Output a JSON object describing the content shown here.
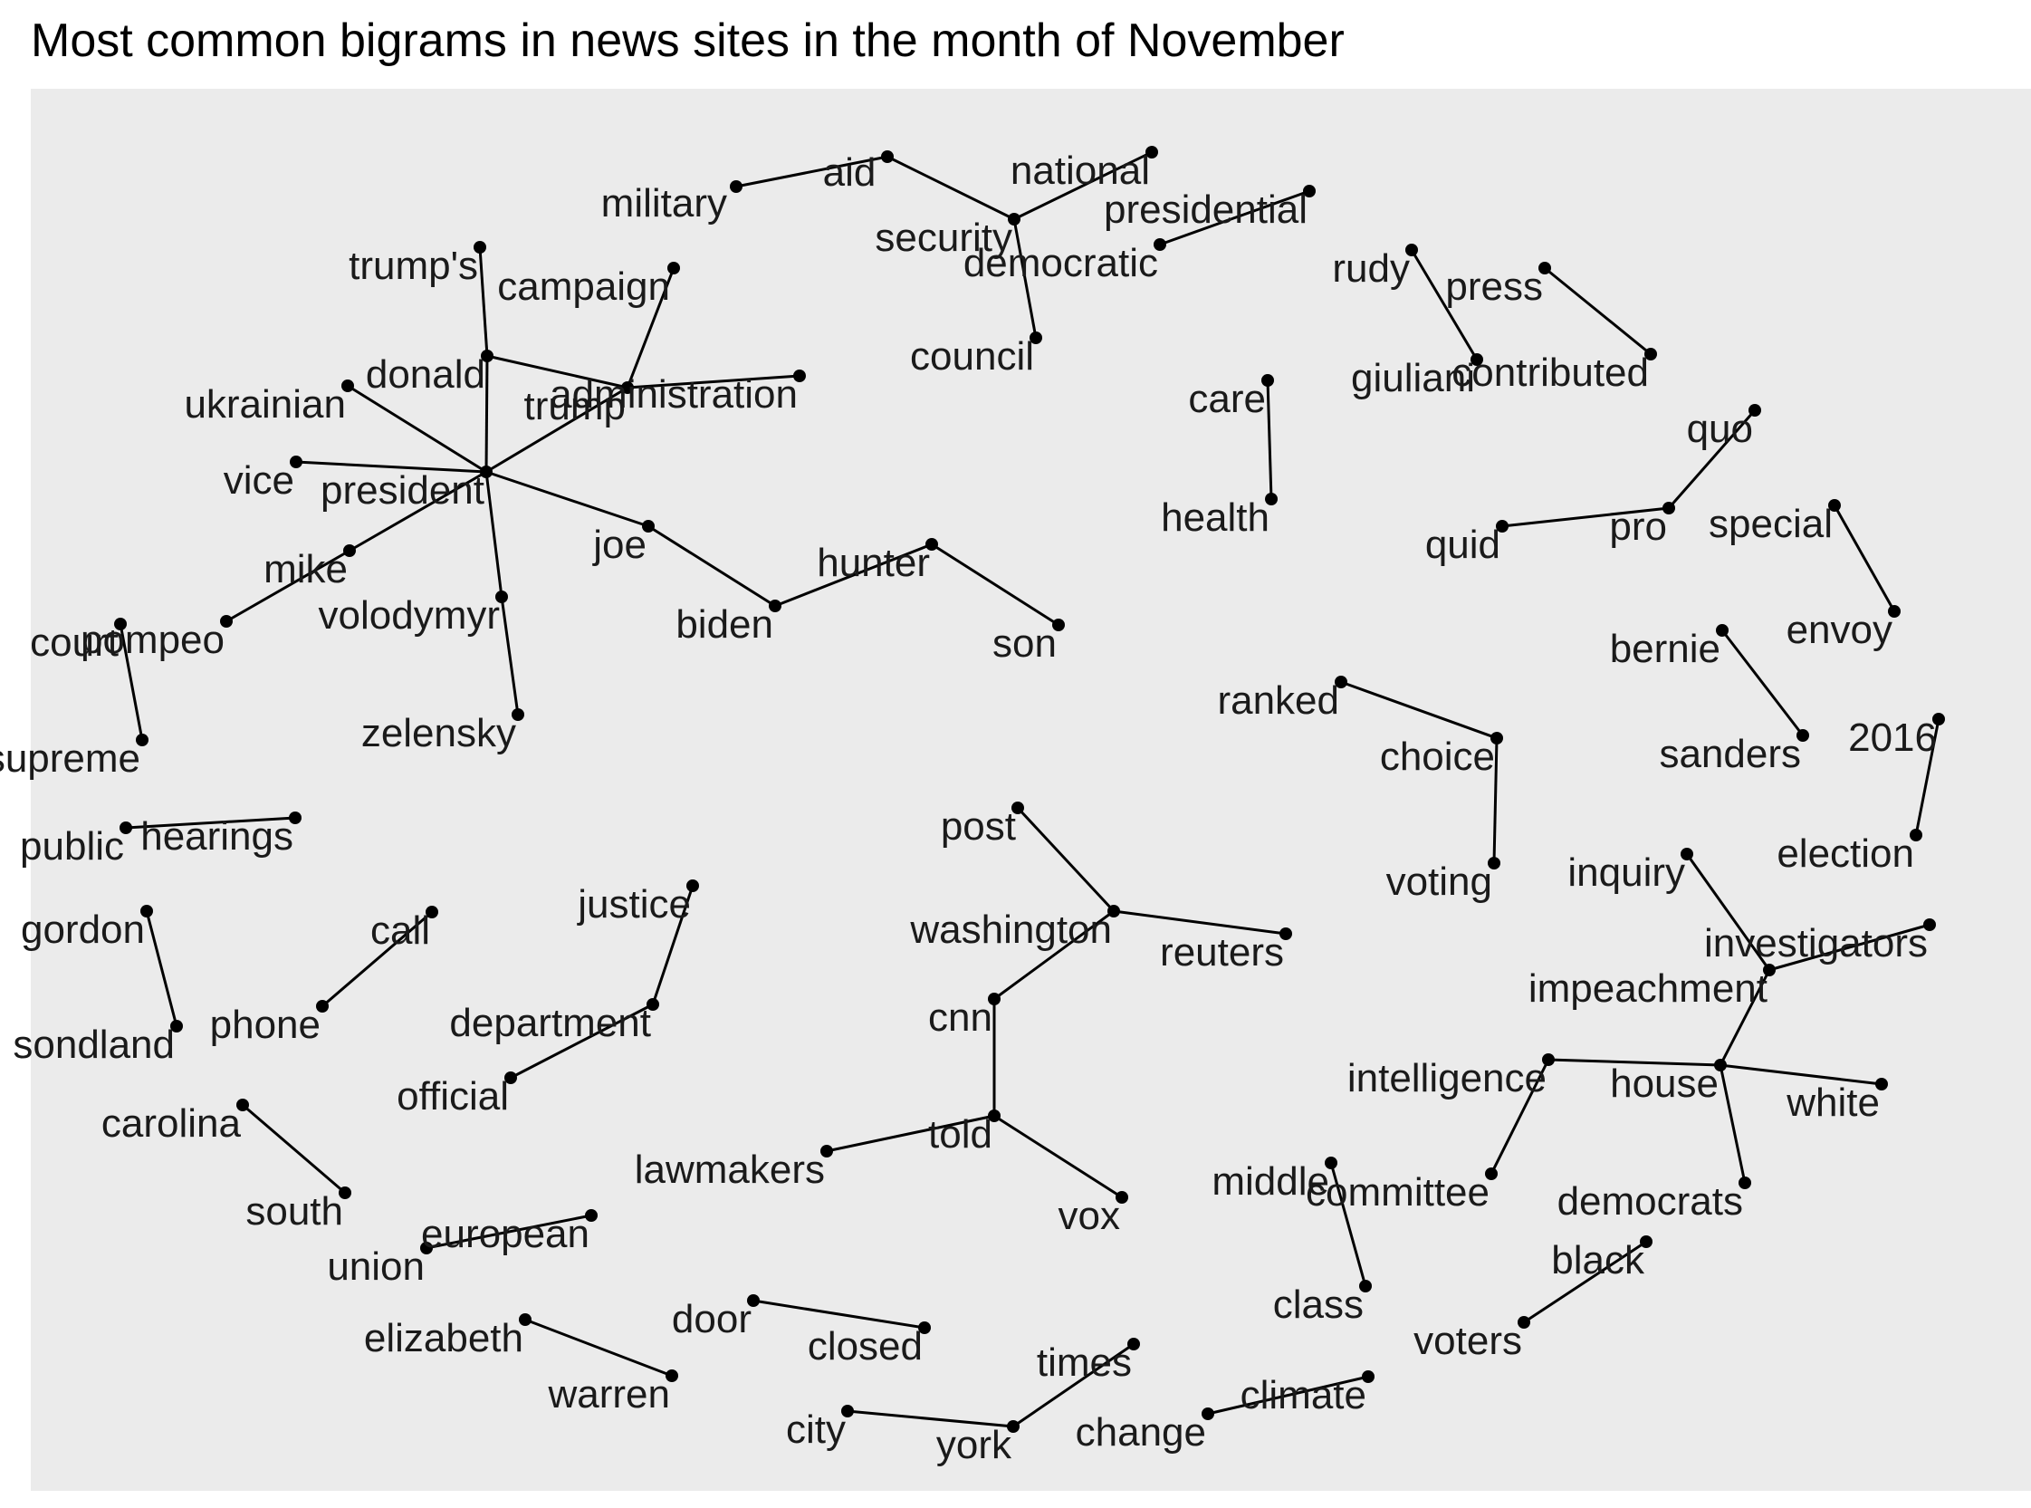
{
  "title": "Most common bigrams in news sites in the month of November",
  "colors": {
    "panel": "#ebebeb",
    "edge": "#000000",
    "node": "#000000",
    "text": "#1a1a1a"
  },
  "nodes": [
    {
      "id": "military",
      "label": "military"
    },
    {
      "id": "aid",
      "label": "aid"
    },
    {
      "id": "national",
      "label": "national"
    },
    {
      "id": "security",
      "label": "security"
    },
    {
      "id": "council",
      "label": "council"
    },
    {
      "id": "presidential",
      "label": "presidential"
    },
    {
      "id": "democratic",
      "label": "democratic"
    },
    {
      "id": "trumps",
      "label": "trump's"
    },
    {
      "id": "campaign",
      "label": "campaign"
    },
    {
      "id": "donald",
      "label": "donald"
    },
    {
      "id": "trump",
      "label": "trump"
    },
    {
      "id": "administration",
      "label": "administration"
    },
    {
      "id": "ukrainian",
      "label": "ukrainian"
    },
    {
      "id": "vice",
      "label": "vice"
    },
    {
      "id": "president",
      "label": "president"
    },
    {
      "id": "mike",
      "label": "mike"
    },
    {
      "id": "pompeo",
      "label": "pompeo"
    },
    {
      "id": "volodymyr",
      "label": "volodymyr"
    },
    {
      "id": "zelensky",
      "label": "zelensky"
    },
    {
      "id": "joe",
      "label": "joe"
    },
    {
      "id": "biden",
      "label": "biden"
    },
    {
      "id": "hunter",
      "label": "hunter"
    },
    {
      "id": "son",
      "label": "son"
    },
    {
      "id": "court",
      "label": "court"
    },
    {
      "id": "supreme",
      "label": "supreme"
    },
    {
      "id": "public",
      "label": "public"
    },
    {
      "id": "hearings",
      "label": "hearings"
    },
    {
      "id": "gordon",
      "label": "gordon"
    },
    {
      "id": "sondland",
      "label": "sondland"
    },
    {
      "id": "call",
      "label": "call"
    },
    {
      "id": "phone",
      "label": "phone"
    },
    {
      "id": "justice",
      "label": "justice"
    },
    {
      "id": "department",
      "label": "department"
    },
    {
      "id": "official",
      "label": "official"
    },
    {
      "id": "carolina",
      "label": "carolina"
    },
    {
      "id": "south",
      "label": "south"
    },
    {
      "id": "european",
      "label": "european"
    },
    {
      "id": "union",
      "label": "union"
    },
    {
      "id": "elizabeth",
      "label": "elizabeth"
    },
    {
      "id": "warren",
      "label": "warren"
    },
    {
      "id": "door",
      "label": "door"
    },
    {
      "id": "closed",
      "label": "closed"
    },
    {
      "id": "times",
      "label": "times"
    },
    {
      "id": "city",
      "label": "city"
    },
    {
      "id": "york",
      "label": "york"
    },
    {
      "id": "post",
      "label": "post"
    },
    {
      "id": "washington",
      "label": "washington"
    },
    {
      "id": "reuters",
      "label": "reuters"
    },
    {
      "id": "cnn",
      "label": "cnn"
    },
    {
      "id": "told",
      "label": "told"
    },
    {
      "id": "lawmakers",
      "label": "lawmakers"
    },
    {
      "id": "vox",
      "label": "vox"
    },
    {
      "id": "care",
      "label": "care"
    },
    {
      "id": "health",
      "label": "health"
    },
    {
      "id": "rudy",
      "label": "rudy"
    },
    {
      "id": "giuliani",
      "label": "giuliani"
    },
    {
      "id": "press",
      "label": "press"
    },
    {
      "id": "contributed",
      "label": "contributed"
    },
    {
      "id": "quid",
      "label": "quid"
    },
    {
      "id": "pro",
      "label": "pro"
    },
    {
      "id": "quo",
      "label": "quo"
    },
    {
      "id": "special",
      "label": "special"
    },
    {
      "id": "envoy",
      "label": "envoy"
    },
    {
      "id": "bernie",
      "label": "bernie"
    },
    {
      "id": "sanders",
      "label": "sanders"
    },
    {
      "id": "2016",
      "label": "2016"
    },
    {
      "id": "election",
      "label": "election"
    },
    {
      "id": "ranked",
      "label": "ranked"
    },
    {
      "id": "choice",
      "label": "choice"
    },
    {
      "id": "voting",
      "label": "voting"
    },
    {
      "id": "inquiry",
      "label": "inquiry"
    },
    {
      "id": "impeachment",
      "label": "impeachment"
    },
    {
      "id": "investigators",
      "label": "investigators"
    },
    {
      "id": "intelligence",
      "label": "intelligence"
    },
    {
      "id": "committee",
      "label": "committee"
    },
    {
      "id": "house",
      "label": "house"
    },
    {
      "id": "white",
      "label": "white"
    },
    {
      "id": "democrats",
      "label": "democrats"
    },
    {
      "id": "middle",
      "label": "middle"
    },
    {
      "id": "class",
      "label": "class"
    },
    {
      "id": "black",
      "label": "black"
    },
    {
      "id": "voters",
      "label": "voters"
    },
    {
      "id": "climate",
      "label": "climate"
    },
    {
      "id": "change",
      "label": "change"
    }
  ],
  "edges": [
    [
      "military",
      "aid"
    ],
    [
      "aid",
      "security"
    ],
    [
      "national",
      "security"
    ],
    [
      "security",
      "council"
    ],
    [
      "presidential",
      "democratic"
    ],
    [
      "trumps",
      "donald"
    ],
    [
      "donald",
      "trump"
    ],
    [
      "donald",
      "president"
    ],
    [
      "trump",
      "administration"
    ],
    [
      "campaign",
      "trump"
    ],
    [
      "ukrainian",
      "president"
    ],
    [
      "vice",
      "president"
    ],
    [
      "president",
      "mike"
    ],
    [
      "mike",
      "pompeo"
    ],
    [
      "president",
      "volodymyr"
    ],
    [
      "volodymyr",
      "zelensky"
    ],
    [
      "president",
      "trump"
    ],
    [
      "president",
      "joe"
    ],
    [
      "joe",
      "biden"
    ],
    [
      "biden",
      "hunter"
    ],
    [
      "hunter",
      "son"
    ],
    [
      "court",
      "supreme"
    ],
    [
      "public",
      "hearings"
    ],
    [
      "gordon",
      "sondland"
    ],
    [
      "phone",
      "call"
    ],
    [
      "justice",
      "department"
    ],
    [
      "department",
      "official"
    ],
    [
      "carolina",
      "south"
    ],
    [
      "union",
      "european"
    ],
    [
      "elizabeth",
      "warren"
    ],
    [
      "door",
      "closed"
    ],
    [
      "city",
      "york"
    ],
    [
      "york",
      "times"
    ],
    [
      "post",
      "washington"
    ],
    [
      "washington",
      "reuters"
    ],
    [
      "washington",
      "cnn"
    ],
    [
      "cnn",
      "told"
    ],
    [
      "lawmakers",
      "told"
    ],
    [
      "told",
      "vox"
    ],
    [
      "care",
      "health"
    ],
    [
      "rudy",
      "giuliani"
    ],
    [
      "press",
      "contributed"
    ],
    [
      "quid",
      "pro"
    ],
    [
      "pro",
      "quo"
    ],
    [
      "special",
      "envoy"
    ],
    [
      "bernie",
      "sanders"
    ],
    [
      "2016",
      "election"
    ],
    [
      "ranked",
      "choice"
    ],
    [
      "choice",
      "voting"
    ],
    [
      "inquiry",
      "impeachment"
    ],
    [
      "impeachment",
      "investigators"
    ],
    [
      "impeachment",
      "house"
    ],
    [
      "intelligence",
      "committee"
    ],
    [
      "intelligence",
      "house"
    ],
    [
      "house",
      "white"
    ],
    [
      "house",
      "democrats"
    ],
    [
      "middle",
      "class"
    ],
    [
      "black",
      "voters"
    ],
    [
      "climate",
      "change"
    ]
  ]
}
